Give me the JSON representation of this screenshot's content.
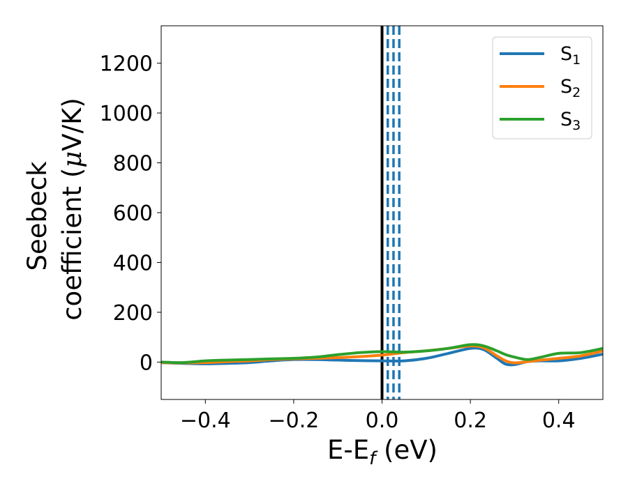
{
  "chart_data": {
    "type": "line",
    "title": "",
    "xlabel": {
      "main": "E-E",
      "sub": "f",
      "rest": " (eV)"
    },
    "ylabel": {
      "line1": "Seebeck",
      "line2_prefix": "coefficient  (",
      "mu": "μ",
      "line2_suffix": "V/K)"
    },
    "xlim": [
      -0.5,
      0.5
    ],
    "ylim": [
      -150,
      1350
    ],
    "x_ticks": [
      -0.4,
      -0.2,
      0.0,
      0.2,
      0.4
    ],
    "x_tick_labels": [
      "−0.4",
      "−0.2",
      "0.0",
      "0.2",
      "0.4"
    ],
    "y_ticks": [
      0,
      200,
      400,
      600,
      800,
      1000,
      1200
    ],
    "y_tick_labels": [
      "0",
      "200",
      "400",
      "600",
      "800",
      "1000",
      "1200"
    ],
    "grid": false,
    "legend_position": "top-right",
    "vertical_lines": [
      {
        "x": 0.0,
        "style": "solid",
        "color": "#000000"
      },
      {
        "x": 0.013,
        "style": "dashed",
        "color": "#1f77b4"
      },
      {
        "x": 0.026,
        "style": "dashed",
        "color": "#1f77b4"
      },
      {
        "x": 0.039,
        "style": "dashed",
        "color": "#1f77b4"
      }
    ],
    "series": [
      {
        "name": "S",
        "sub": "1",
        "color": "#1f77b4",
        "x": [
          -0.5,
          -0.45,
          -0.4,
          -0.35,
          -0.3,
          -0.25,
          -0.2,
          -0.15,
          -0.1,
          -0.05,
          0.0,
          0.05,
          0.1,
          0.15,
          0.2,
          0.23,
          0.26,
          0.28,
          0.3,
          0.33,
          0.36,
          0.4,
          0.45,
          0.5
        ],
        "y": [
          -2,
          -5,
          -7,
          -5,
          -2,
          5,
          10,
          10,
          8,
          6,
          5,
          5,
          15,
          35,
          55,
          50,
          15,
          -8,
          -10,
          2,
          5,
          5,
          15,
          32
        ]
      },
      {
        "name": "S",
        "sub": "2",
        "color": "#ff7f0e",
        "x": [
          -0.5,
          -0.45,
          -0.4,
          -0.35,
          -0.3,
          -0.25,
          -0.2,
          -0.15,
          -0.1,
          -0.05,
          0.0,
          0.05,
          0.1,
          0.15,
          0.2,
          0.23,
          0.26,
          0.28,
          0.3,
          0.33,
          0.36,
          0.4,
          0.45,
          0.5
        ],
        "y": [
          -2,
          -3,
          -2,
          2,
          5,
          10,
          13,
          15,
          18,
          22,
          28,
          38,
          45,
          55,
          65,
          58,
          25,
          5,
          -3,
          2,
          8,
          15,
          25,
          45
        ]
      },
      {
        "name": "S",
        "sub": "3",
        "color": "#2ca02c",
        "x": [
          -0.5,
          -0.45,
          -0.4,
          -0.35,
          -0.3,
          -0.25,
          -0.2,
          -0.15,
          -0.1,
          -0.05,
          0.0,
          0.05,
          0.1,
          0.15,
          0.2,
          0.23,
          0.26,
          0.28,
          0.3,
          0.33,
          0.36,
          0.4,
          0.45,
          0.5
        ],
        "y": [
          0,
          -2,
          5,
          8,
          10,
          13,
          15,
          20,
          30,
          38,
          42,
          40,
          45,
          55,
          70,
          65,
          45,
          30,
          20,
          10,
          20,
          35,
          38,
          55
        ]
      }
    ]
  }
}
